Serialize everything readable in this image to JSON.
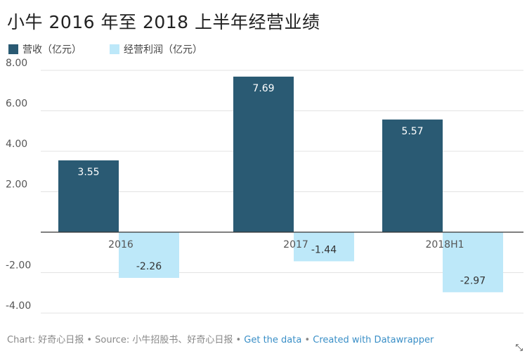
{
  "chart_data": {
    "type": "bar",
    "title": "小牛 2016 年至 2018 上半年经营业绩",
    "categories": [
      "2016",
      "2017",
      "2018H1"
    ],
    "series": [
      {
        "name": "营收（亿元）",
        "values": [
          3.55,
          7.69,
          5.57
        ],
        "color": "#2a5a73"
      },
      {
        "name": "经营利润（亿元）",
        "values": [
          -2.26,
          -1.44,
          -2.97
        ],
        "color": "#bde8f9"
      }
    ],
    "ylim": [
      -4,
      8
    ],
    "yticks": [
      8,
      6,
      4,
      2,
      -2,
      -4
    ],
    "ytick_labels": [
      "8.00",
      "6.00",
      "4.00",
      "2.00",
      "-2.00",
      "-4.00"
    ],
    "data_labels": [
      [
        "3.55",
        "7.69",
        "5.57"
      ],
      [
        "-2.26",
        "-1.44",
        "-2.97"
      ]
    ],
    "xlabel": "",
    "ylabel": ""
  },
  "legend": {
    "revenue": "营收（亿元）",
    "profit": "经营利润（亿元）"
  },
  "footer": {
    "prefix": "Chart: 好奇心日报 • Source: 小牛招股书、好奇心日报 • ",
    "get_data": "Get the data",
    "separator": " • ",
    "created_with": "Created with Datawrapper"
  },
  "icons": {
    "expand": "expand-icon"
  }
}
